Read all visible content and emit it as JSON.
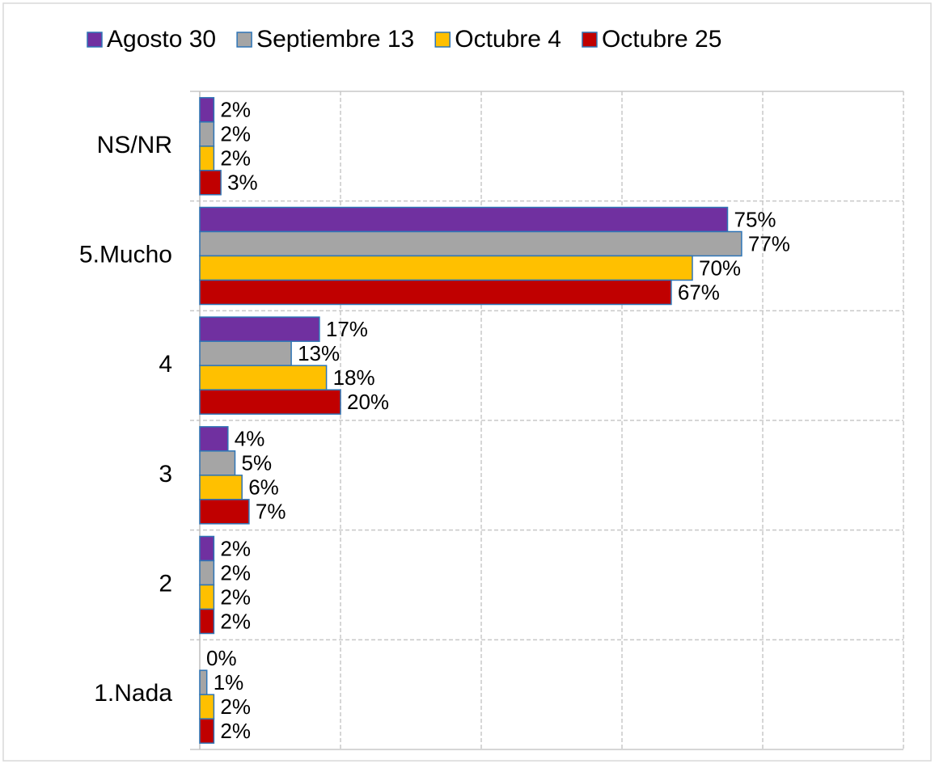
{
  "chart_data": {
    "type": "barh",
    "categories": [
      "NS/NR",
      "5.Mucho",
      "4",
      "3",
      "2",
      "1.Nada"
    ],
    "series": [
      {
        "name": "Agosto 30",
        "color": "#7030a0",
        "values": [
          2,
          75,
          17,
          4,
          2,
          0
        ],
        "value_labels": [
          "2%",
          "75%",
          "17%",
          "4%",
          "2%",
          "0%"
        ]
      },
      {
        "name": "Septiembre 13",
        "color": "#a5a5a5",
        "values": [
          2,
          77,
          13,
          5,
          2,
          1
        ],
        "value_labels": [
          "2%",
          "77%",
          "13%",
          "5%",
          "2%",
          "1%"
        ]
      },
      {
        "name": "Octubre 4",
        "color": "#ffc000",
        "values": [
          2,
          70,
          18,
          6,
          2,
          2
        ],
        "value_labels": [
          "2%",
          "70%",
          "18%",
          "6%",
          "2%",
          "2%"
        ]
      },
      {
        "name": "Octubre 25",
        "color": "#c00000",
        "values": [
          3,
          67,
          20,
          7,
          2,
          2
        ],
        "value_labels": [
          "3%",
          "67%",
          "20%",
          "7%",
          "2%",
          "2%"
        ]
      }
    ],
    "xlim": [
      0,
      100
    ],
    "xticks": [
      0,
      20,
      40,
      60,
      80,
      100
    ],
    "grid": true,
    "legend": "top"
  }
}
